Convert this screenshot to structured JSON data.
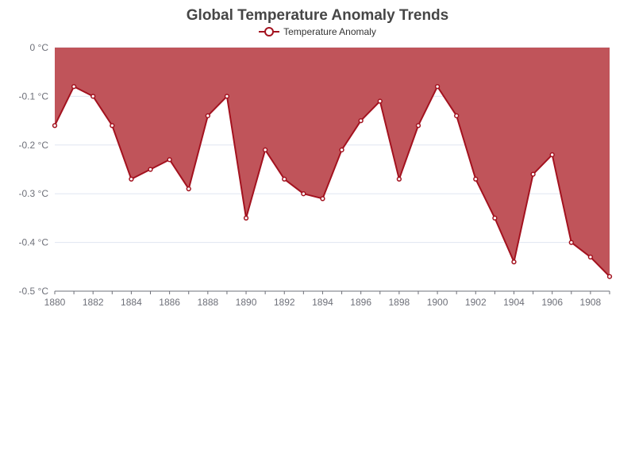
{
  "chart_data": {
    "type": "area",
    "title": "Global Temperature Anomaly Trends",
    "xlabel": "",
    "ylabel": "",
    "x": [
      1880,
      1881,
      1882,
      1883,
      1884,
      1885,
      1886,
      1887,
      1888,
      1889,
      1890,
      1891,
      1892,
      1893,
      1894,
      1895,
      1896,
      1897,
      1898,
      1899,
      1900,
      1901,
      1902,
      1903,
      1904,
      1905,
      1906,
      1907,
      1908,
      1909
    ],
    "x_tick_labels": [
      "1880",
      "1882",
      "1884",
      "1886",
      "1888",
      "1890",
      "1892",
      "1894",
      "1896",
      "1898",
      "1900",
      "1902",
      "1904",
      "1906",
      "1908"
    ],
    "y_tick_labels": [
      "0 °C",
      "-0.1 °C",
      "-0.2 °C",
      "-0.3 °C",
      "-0.4 °C",
      "-0.5 °C"
    ],
    "ylim": [
      -0.5,
      0
    ],
    "y_ticks": [
      0,
      -0.1,
      -0.2,
      -0.3,
      -0.4,
      -0.5
    ],
    "grid": true,
    "legend_position": "top-center",
    "series": [
      {
        "name": "Temperature Anomaly",
        "values": [
          -0.16,
          -0.08,
          -0.1,
          -0.16,
          -0.27,
          -0.25,
          -0.23,
          -0.29,
          -0.14,
          -0.1,
          -0.35,
          -0.21,
          -0.27,
          -0.3,
          -0.31,
          -0.21,
          -0.15,
          -0.11,
          -0.27,
          -0.16,
          -0.08,
          -0.14,
          -0.27,
          -0.35,
          -0.44,
          -0.26,
          -0.22,
          -0.4,
          -0.43,
          -0.47
        ]
      }
    ],
    "colors": {
      "line": "#a3121f",
      "area": "#c0545a",
      "grid": "#e0e6f1",
      "axis": "#6e7079"
    }
  }
}
